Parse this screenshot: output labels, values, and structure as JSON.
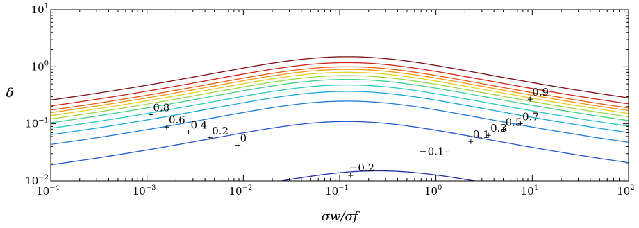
{
  "chart_data": {
    "type": "line",
    "xlabel": "σw/σf",
    "ylabel": "δ",
    "xscale": "log",
    "yscale": "log",
    "xlim": [
      0.0001,
      100
    ],
    "ylim": [
      0.01,
      10
    ],
    "grid": false,
    "legend": "none",
    "x_ticks": [
      {
        "base": "10",
        "exp": "−4",
        "value": 0.0001
      },
      {
        "base": "10",
        "exp": "−3",
        "value": 0.001
      },
      {
        "base": "10",
        "exp": "−2",
        "value": 0.01
      },
      {
        "base": "10",
        "exp": "−1",
        "value": 0.1
      },
      {
        "base": "10",
        "exp": "0",
        "value": 1
      },
      {
        "base": "10",
        "exp": "1",
        "value": 10
      },
      {
        "base": "10",
        "exp": "2",
        "value": 100
      }
    ],
    "y_ticks": [
      {
        "base": "10",
        "exp": "−2",
        "value": 0.01
      },
      {
        "base": "10",
        "exp": "−1",
        "value": 0.1
      },
      {
        "base": "10",
        "exp": "0",
        "value": 1
      },
      {
        "base": "10",
        "exp": "1",
        "value": 10
      }
    ],
    "series": [
      {
        "label": "−0.2",
        "color": "#1f2fa3",
        "peak_x": 0.25,
        "peak_y": 0.015,
        "marker": [
          0.13,
          0.0125
        ]
      },
      {
        "label": "−0.1",
        "color": "#2456c8",
        "peak_x": 0.12,
        "peak_y": 0.11,
        "marker": [
          1.3,
          0.032
        ]
      },
      {
        "label": "0",
        "color": "#1f7ad6",
        "peak_x": 0.12,
        "peak_y": 0.25,
        "marker": [
          0.0088,
          0.042
        ]
      },
      {
        "label": "0.1",
        "color": "#1aa6d9",
        "peak_x": 0.12,
        "peak_y": 0.37,
        "marker": [
          2.3,
          0.049
        ]
      },
      {
        "label": "0.2",
        "color": "#22c9c4",
        "peak_x": 0.12,
        "peak_y": 0.48,
        "marker": [
          0.0045,
          0.057
        ]
      },
      {
        "label": "0.3",
        "color": "#3ed18d",
        "peak_x": 0.12,
        "peak_y": 0.6,
        "marker": [
          3.5,
          0.063
        ]
      },
      {
        "label": "0.4",
        "color": "#9bd640",
        "peak_x": 0.12,
        "peak_y": 0.7,
        "marker": [
          0.0027,
          0.072
        ]
      },
      {
        "label": "0.5",
        "color": "#e9cf1e",
        "peak_x": 0.12,
        "peak_y": 0.8,
        "marker": [
          5.0,
          0.08
        ]
      },
      {
        "label": "0.6",
        "color": "#f59a16",
        "peak_x": 0.12,
        "peak_y": 0.9,
        "marker": [
          0.0016,
          0.088
        ]
      },
      {
        "label": "0.7",
        "color": "#ea5a17",
        "peak_x": 0.12,
        "peak_y": 1.0,
        "marker": [
          7.5,
          0.1
        ]
      },
      {
        "label": "0.8",
        "color": "#cc1f1a",
        "peak_x": 0.12,
        "peak_y": 1.18,
        "marker": [
          0.0011,
          0.145
        ]
      },
      {
        "label": "0.9",
        "color": "#7a0d12",
        "peak_x": 0.12,
        "peak_y": 1.5,
        "marker": [
          9.5,
          0.27
        ]
      }
    ]
  }
}
